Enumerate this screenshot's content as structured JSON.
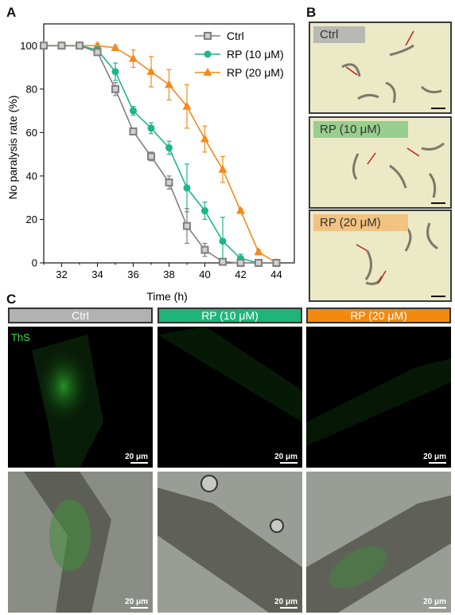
{
  "panels": {
    "a": "A",
    "b": "B",
    "c": "C"
  },
  "chart_data": {
    "type": "line",
    "xlabel": "Time (h)",
    "ylabel": "No paralysis rate (%)",
    "xlim": [
      31,
      45
    ],
    "ylim": [
      0,
      110
    ],
    "xticks": [
      "32",
      "34",
      "36",
      "38",
      "40",
      "42",
      "44"
    ],
    "yticks": [
      "0",
      "20",
      "40",
      "60",
      "80",
      "100"
    ],
    "legend_position": "top-right",
    "series": [
      {
        "name": "Ctrl",
        "color": "#7f7f7f",
        "marker": "square",
        "x": [
          31,
          32,
          33,
          34,
          35,
          36,
          37,
          38,
          39,
          40,
          41,
          42,
          43,
          44
        ],
        "y": [
          100,
          100,
          100,
          97,
          80,
          60.5,
          49,
          37,
          17,
          6,
          0.5,
          0,
          0,
          0
        ],
        "err": [
          1,
          1,
          1,
          1.5,
          3,
          1.5,
          2,
          3,
          8,
          3,
          1,
          0.5,
          0,
          0
        ]
      },
      {
        "name": "RP (10 μM)",
        "color": "#1fb58a",
        "marker": "circle",
        "x": [
          31,
          32,
          33,
          34,
          35,
          36,
          37,
          38,
          39,
          40,
          41,
          42,
          43,
          44
        ],
        "y": [
          100,
          100,
          100,
          98,
          88,
          70,
          62,
          53,
          34.5,
          24,
          10,
          2,
          0,
          0
        ],
        "err": [
          1,
          1,
          1,
          1.5,
          4,
          2,
          2.5,
          3,
          11,
          4,
          11,
          2,
          0.5,
          0
        ]
      },
      {
        "name": "RP (20 μM)",
        "color": "#f28a1c",
        "marker": "triangle",
        "x": [
          31,
          32,
          33,
          34,
          35,
          36,
          37,
          38,
          39,
          40,
          41,
          42,
          43,
          44
        ],
        "y": [
          100,
          100,
          100,
          100,
          99,
          94,
          88,
          82,
          72,
          57,
          43,
          24,
          5,
          0
        ],
        "err": [
          1,
          1,
          1,
          1,
          1,
          4,
          7,
          7,
          10,
          6,
          6,
          1,
          1,
          0
        ]
      }
    ]
  },
  "panel_b": {
    "images": [
      {
        "label": "Ctrl",
        "label_bg": "#b9b9b4"
      },
      {
        "label": "RP (10 μM)",
        "label_bg": "#98cf8f"
      },
      {
        "label": "RP (20 μM)",
        "label_bg": "#f2c280"
      }
    ]
  },
  "panel_c": {
    "headers": [
      {
        "label": "Ctrl",
        "color": "#b2b2b2"
      },
      {
        "label": "RP (10 μM)",
        "color": "#1fb57a"
      },
      {
        "label": "RP (20 μM)",
        "color": "#f28a10"
      }
    ],
    "stain_label": "ThS",
    "scale_label": "20 μm"
  }
}
